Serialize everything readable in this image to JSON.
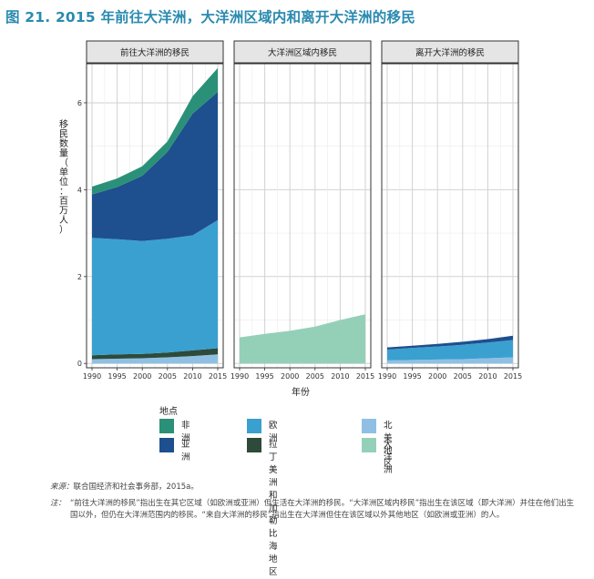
{
  "title": "图 21. 2015 年前往大洋洲，大洋洲区域内和离开大洋洲的移民",
  "y_axis_title": "移民数量（单位：百万人）",
  "x_axis_title": "年份",
  "legend_title": "地点",
  "source_label": "来源：",
  "source_text": "联合国经济和社会事务部，2015a。",
  "note_label": "注：",
  "note_text": "“前往大洋洲的移民”指出生在其它区域（如欧洲或亚洲）但生活在大洋洲的移民。“大洋洲区域内移民”指出生在该区域（即大洋洲）并住在他们出生国以外，但仍在大洋洲范围内的移民。“来自大洋洲的移民”指出生在大洋洲但住在该区域以外其他地区（如欧洲或亚洲）的人。",
  "colors": {
    "africa": "#2a9178",
    "asia": "#1e4f8f",
    "europe": "#3aa0d0",
    "latin_america": "#2d4a3a",
    "north_america": "#8fc0e4",
    "oceania": "#94d0b8"
  },
  "chart_data": {
    "type": "area",
    "stacked": true,
    "x": [
      1990,
      1995,
      2000,
      2005,
      2010,
      2015
    ],
    "x_ticks": [
      "1990",
      "1995",
      "2000",
      "2005",
      "2010",
      "2015"
    ],
    "y_ticks": [
      "0",
      "2",
      "4",
      "6"
    ],
    "ylim": [
      -0.1,
      6.9
    ],
    "grid": true,
    "legend": "bottom",
    "stack_order": [
      "north_america",
      "latin_america",
      "europe",
      "asia",
      "africa",
      "oceania"
    ],
    "legend_items": [
      {
        "key": "africa",
        "label": "非洲"
      },
      {
        "key": "asia",
        "label": "亚洲"
      },
      {
        "key": "europe",
        "label": "欧洲"
      },
      {
        "key": "latin_america",
        "label": "拉丁美洲和\n加勒比海地区"
      },
      {
        "key": "north_america",
        "label": "北美地区"
      },
      {
        "key": "oceania",
        "label": "大洋洲"
      }
    ],
    "panels": [
      {
        "title": "前往大洋洲的移民",
        "series": [
          {
            "key": "north_america",
            "values": [
              0.1,
              0.11,
              0.12,
              0.14,
              0.17,
              0.21
            ]
          },
          {
            "key": "latin_america",
            "values": [
              0.09,
              0.1,
              0.1,
              0.11,
              0.13,
              0.14
            ]
          },
          {
            "key": "europe",
            "values": [
              2.7,
              2.65,
              2.6,
              2.62,
              2.65,
              2.95
            ]
          },
          {
            "key": "asia",
            "values": [
              1.0,
              1.2,
              1.5,
              2.0,
              2.8,
              2.95
            ]
          },
          {
            "key": "africa",
            "values": [
              0.18,
              0.2,
              0.22,
              0.24,
              0.4,
              0.55
            ]
          }
        ]
      },
      {
        "title": "大洋洲区域内移民",
        "series": [
          {
            "key": "oceania",
            "values": [
              0.6,
              0.68,
              0.75,
              0.85,
              1.0,
              1.13
            ]
          }
        ]
      },
      {
        "title": "离开大洋洲的移民",
        "series": [
          {
            "key": "north_america",
            "values": [
              0.07,
              0.08,
              0.09,
              0.1,
              0.12,
              0.14
            ]
          },
          {
            "key": "europe",
            "values": [
              0.25,
              0.28,
              0.3,
              0.33,
              0.36,
              0.4
            ]
          },
          {
            "key": "asia",
            "values": [
              0.05,
              0.05,
              0.06,
              0.07,
              0.08,
              0.1
            ]
          }
        ]
      }
    ]
  }
}
